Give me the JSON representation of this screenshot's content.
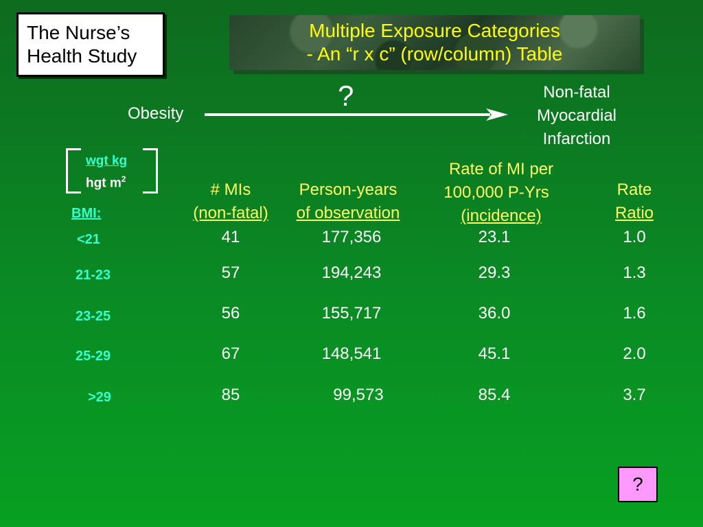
{
  "study_box": {
    "line1": "The Nurse’s",
    "line2": "Health Study"
  },
  "title": {
    "line1": "Multiple Exposure Categories",
    "line2": "- An “r x c” (row/column) Table"
  },
  "diagram": {
    "question_mark": "?",
    "exposure": "Obesity",
    "outcome_lines": [
      "Non-fatal",
      "Myocardial",
      "Infarction"
    ]
  },
  "bmi_formula": {
    "numerator": "wgt kg",
    "denominator": "hgt  m",
    "exponent": "2"
  },
  "bmi_label": "BMI:",
  "columns": {
    "mis": [
      "# MIs",
      "(non-fatal)"
    ],
    "person_years": [
      "Person-years",
      "of observation"
    ],
    "rate": [
      "Rate of MI per",
      "100,000 P-Yrs",
      "(incidence)"
    ],
    "ratio": [
      "Rate",
      "Ratio"
    ]
  },
  "rows": [
    {
      "bmi": "<21",
      "mis": "41",
      "person_years": "177,356",
      "rate": "23.1",
      "ratio": "1.0"
    },
    {
      "bmi": "21-23",
      "mis": "57",
      "person_years": "194,243",
      "rate": "29.3",
      "ratio": "1.3"
    },
    {
      "bmi": "23-25",
      "mis": "56",
      "person_years": "155,717",
      "rate": "36.0",
      "ratio": "1.6"
    },
    {
      "bmi": "25-29",
      "mis": "67",
      "person_years": "148,541",
      "rate": "45.1",
      "ratio": "2.0"
    },
    {
      "bmi": ">29",
      "mis": "85",
      "person_years": "99,573",
      "rate": "85.4",
      "ratio": "3.7"
    }
  ],
  "help_button": {
    "label": "?",
    "color": "#ff99ff"
  }
}
